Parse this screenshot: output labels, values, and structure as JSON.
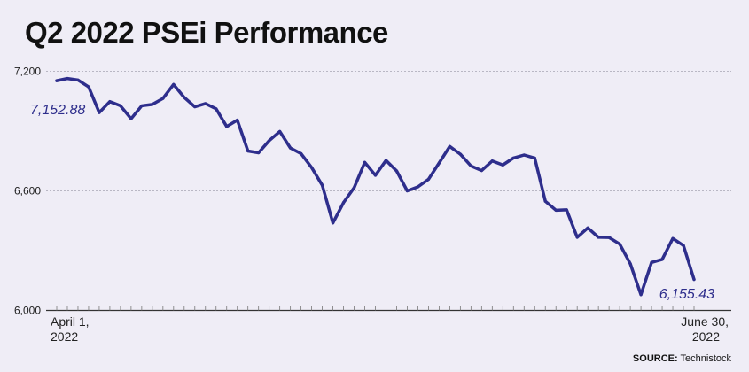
{
  "title": "Q2 2022 PSEi Performance",
  "source_label": "SOURCE:",
  "source_name": "Technistock",
  "colors": {
    "line": "#2e2e8c",
    "background": "#efedf6",
    "grid": "#b9b7c4"
  },
  "chart_data": {
    "type": "line",
    "title": "Q2 2022 PSEi Performance",
    "xlabel": "",
    "ylabel": "",
    "ylim": [
      6000,
      7200
    ],
    "yticks": [
      6000,
      6600,
      7200
    ],
    "ytick_labels": [
      "6,000",
      "6,600",
      "7,200"
    ],
    "grid": true,
    "x_start_label": [
      "April 1,",
      "2022"
    ],
    "x_end_label": [
      "June 30,",
      "2022"
    ],
    "annotations": [
      {
        "text": "7,152.88",
        "point_index": 0
      },
      {
        "text": "6,155.43",
        "point_index": 60
      }
    ],
    "series": [
      {
        "values": [
          7152.88,
          7164,
          7156,
          7122,
          6993,
          7048,
          7027,
          6962,
          7027,
          7034,
          7064,
          7134,
          7069,
          7022,
          7038,
          7012,
          6923,
          6955,
          6800,
          6791,
          6852,
          6898,
          6815,
          6787,
          6717,
          6628,
          6439,
          6541,
          6616,
          6743,
          6678,
          6753,
          6700,
          6600,
          6620,
          6658,
          6740,
          6823,
          6784,
          6725,
          6702,
          6750,
          6730,
          6765,
          6780,
          6765,
          6548,
          6503,
          6505,
          6367,
          6414,
          6367,
          6366,
          6333,
          6234,
          6079,
          6241,
          6256,
          6361,
          6326,
          6155.43
        ]
      }
    ]
  }
}
